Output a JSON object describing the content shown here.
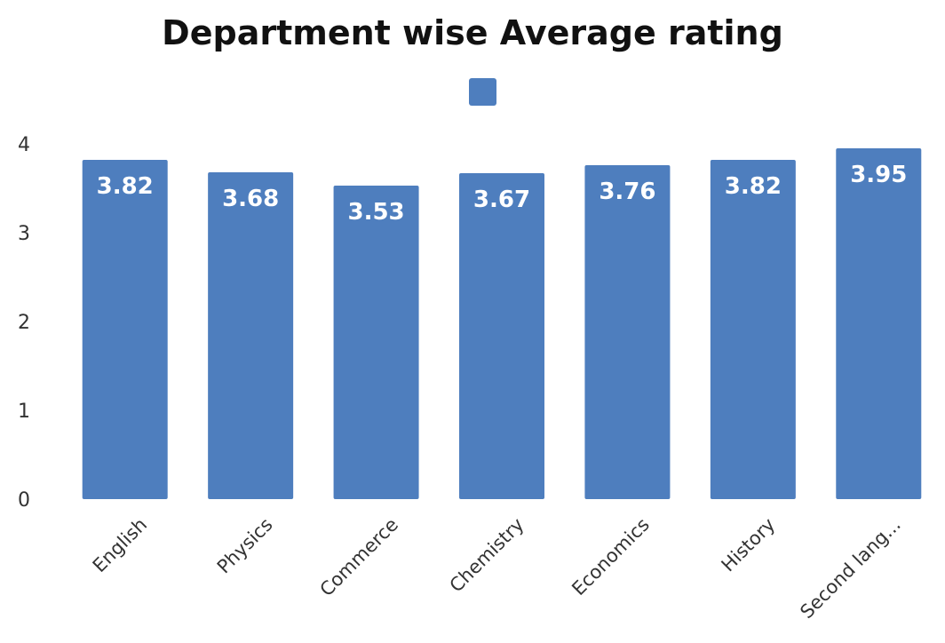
{
  "chart_data": {
    "type": "bar",
    "title": "Department wise Average rating",
    "categories": [
      "English",
      "Physics",
      "Commerce",
      "Chemistry",
      "Economics",
      "History",
      "Second lang..."
    ],
    "series": [
      {
        "name": "",
        "values": [
          3.82,
          3.68,
          3.53,
          3.67,
          3.76,
          3.82,
          3.95
        ],
        "color": "#4E7EBE"
      }
    ],
    "data_labels": [
      "3.82",
      "3.68",
      "3.53",
      "3.67",
      "3.76",
      "3.82",
      "3.95"
    ],
    "ylim": [
      0,
      4
    ],
    "yticks": [
      0,
      1,
      2,
      3,
      4
    ],
    "xlabel": "",
    "ylabel": "",
    "grid": false,
    "legend": {
      "position": "top-center",
      "color": "#4E7EBE",
      "label": ""
    }
  }
}
